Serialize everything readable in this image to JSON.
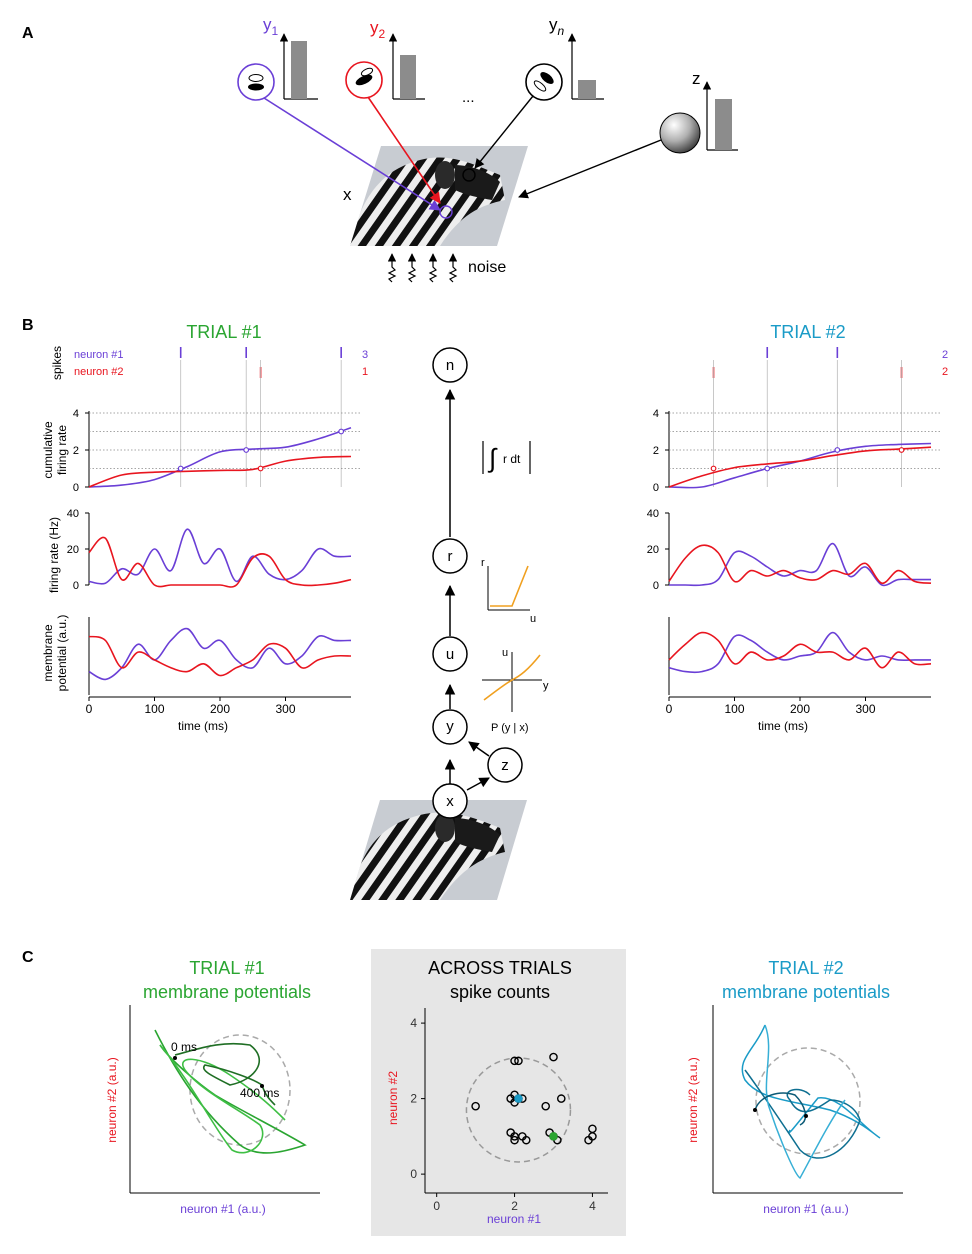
{
  "panel_a": {
    "letter": "A",
    "y1_label": "y",
    "y1_sub": "1",
    "y2_label": "y",
    "y2_sub": "2",
    "yn_label": "y",
    "yn_sub": "n",
    "z_label": "z",
    "dots": "...",
    "x_label": "x",
    "noise_label": "noise"
  },
  "panel_b": {
    "letter": "B",
    "trial1_title": "TRIAL #1",
    "trial2_title": "TRIAL #2",
    "spikes_label": "spikes",
    "neuron1_label": "neuron #1",
    "neuron2_label": "neuron #2",
    "trial1_count_n1": "3",
    "trial1_count_n2": "1",
    "trial2_count_n1": "2",
    "trial2_count_n2": "2",
    "cumulative_label_line1": "cumulative",
    "cumulative_label_line2": "firing rate",
    "firing_label": "firing rate (Hz)",
    "membrane_label_line1": "membrane",
    "membrane_label_line2": "potential (a.u.)",
    "time_label": "time (ms)",
    "cum_ticks": [
      "4",
      "2",
      "0"
    ],
    "fr_ticks": [
      "40",
      "20",
      "0"
    ],
    "time_ticks": [
      "0",
      "100",
      "200",
      "300"
    ],
    "node_n": "n",
    "node_r": "r",
    "node_u": "u",
    "node_y": "y",
    "node_z": "z",
    "node_x": "x",
    "integral_text": "r dt",
    "inset_r_y": "r",
    "inset_r_x": "u",
    "inset_u_y": "u",
    "inset_u_x": "y",
    "pyx_label": "P (y | x)"
  },
  "panel_c": {
    "letter": "C",
    "left_title_1": "TRIAL #1",
    "left_title_2": "membrane potentials",
    "mid_title_1": "ACROSS TRIALS",
    "mid_title_2": "spike counts",
    "right_title_1": "TRIAL #2",
    "right_title_2": "membrane potentials",
    "ylabel_n2_au": "neuron #2 (a.u.)",
    "xlabel_n1_au": "neuron #1 (a.u.)",
    "ylabel_n2": "neuron #2",
    "xlabel_n1": "neuron #1",
    "ann_0ms": "0 ms",
    "ann_400ms": "400 ms",
    "mid_ticks": [
      "0",
      "2",
      "4"
    ]
  },
  "colors": {
    "neuron1": "#6a3fd6",
    "neuron2": "#e8151f",
    "trial1": "#2aa531",
    "trial2": "#1a9bc7",
    "inset_curve": "#f0a020",
    "bar_gray": "#8c8c8c"
  },
  "chart_data": [
    {
      "type": "line",
      "panel": "B trial #1 cumulative firing rate",
      "xlabel": "time (ms)",
      "ylabel": "cumulative firing rate",
      "xlim": [
        0,
        400
      ],
      "ylim": [
        0,
        4
      ],
      "x": [
        0,
        50,
        100,
        150,
        200,
        250,
        300,
        350,
        400
      ],
      "series": [
        {
          "name": "neuron #1",
          "values": [
            0,
            0.1,
            0.4,
            1.1,
            1.9,
            2.05,
            2.15,
            2.6,
            3.2
          ]
        },
        {
          "name": "neuron #2",
          "values": [
            0,
            0.65,
            0.8,
            0.85,
            0.9,
            0.95,
            1.4,
            1.6,
            1.65
          ]
        }
      ]
    },
    {
      "type": "line",
      "panel": "B trial #2 cumulative firing rate",
      "xlabel": "time (ms)",
      "ylabel": "cumulative firing rate",
      "xlim": [
        0,
        400
      ],
      "ylim": [
        0,
        4
      ],
      "x": [
        0,
        50,
        100,
        150,
        200,
        250,
        300,
        350,
        400
      ],
      "series": [
        {
          "name": "neuron #1",
          "values": [
            0,
            0.0,
            0.5,
            1.0,
            1.4,
            1.9,
            2.2,
            2.3,
            2.35
          ]
        },
        {
          "name": "neuron #2",
          "values": [
            0,
            0.6,
            1.05,
            1.25,
            1.4,
            1.7,
            1.95,
            2.05,
            2.15
          ]
        }
      ]
    },
    {
      "type": "line",
      "panel": "B trial #1 firing rate",
      "xlabel": "time (ms)",
      "ylabel": "firing rate (Hz)",
      "xlim": [
        0,
        400
      ],
      "ylim": [
        0,
        40
      ],
      "x": [
        0,
        25,
        50,
        75,
        100,
        125,
        150,
        175,
        200,
        225,
        250,
        275,
        300,
        325,
        350,
        375,
        400
      ],
      "series": [
        {
          "name": "neuron #1",
          "values": [
            2,
            1,
            9,
            6,
            20,
            8,
            31,
            12,
            20,
            2,
            16,
            6,
            3,
            8,
            20,
            16,
            16
          ]
        },
        {
          "name": "neuron #2",
          "values": [
            18,
            26,
            3,
            12,
            0,
            0,
            0,
            0,
            0,
            0,
            15,
            16,
            3,
            0,
            0,
            1,
            3
          ]
        }
      ]
    },
    {
      "type": "line",
      "panel": "B trial #2 firing rate",
      "xlabel": "time (ms)",
      "ylabel": "firing rate (Hz)",
      "xlim": [
        0,
        400
      ],
      "ylim": [
        0,
        40
      ],
      "x": [
        0,
        25,
        50,
        75,
        100,
        125,
        150,
        175,
        200,
        225,
        250,
        275,
        300,
        325,
        350,
        375,
        400
      ],
      "series": [
        {
          "name": "neuron #1",
          "values": [
            0,
            0,
            0,
            3,
            18,
            16,
            10,
            5,
            8,
            8,
            23,
            5,
            10,
            0,
            3,
            3,
            3
          ]
        },
        {
          "name": "neuron #2",
          "values": [
            2,
            15,
            22,
            18,
            2,
            8,
            5,
            8,
            4,
            3,
            8,
            6,
            12,
            1,
            8,
            2,
            1
          ]
        }
      ]
    },
    {
      "type": "scatter",
      "panel": "C across trials spike counts",
      "xlabel": "neuron #1",
      "ylabel": "neuron #2",
      "xlim": [
        -0.3,
        4.4
      ],
      "ylim": [
        -0.5,
        4.4
      ],
      "points": [
        [
          1.0,
          1.8
        ],
        [
          2.0,
          3.0
        ],
        [
          2.1,
          3.0
        ],
        [
          3.0,
          3.1
        ],
        [
          1.9,
          2.0
        ],
        [
          2.0,
          2.1
        ],
        [
          2.1,
          2.0
        ],
        [
          2.0,
          1.9
        ],
        [
          2.2,
          2.0
        ],
        [
          2.8,
          1.8
        ],
        [
          3.2,
          2.0
        ],
        [
          1.9,
          1.1
        ],
        [
          2.0,
          1.0
        ],
        [
          2.2,
          1.0
        ],
        [
          2.3,
          0.9
        ],
        [
          2.0,
          0.9
        ],
        [
          3.0,
          1.0
        ],
        [
          3.1,
          0.9
        ],
        [
          2.9,
          1.1
        ],
        [
          4.0,
          1.2
        ],
        [
          4.0,
          1.0
        ],
        [
          3.9,
          0.9
        ]
      ],
      "highlight": [
        {
          "trial": "TRIAL #1",
          "point": [
            3.0,
            1.0
          ]
        },
        {
          "trial": "TRIAL #2",
          "point": [
            2.1,
            2.0
          ]
        }
      ]
    }
  ]
}
